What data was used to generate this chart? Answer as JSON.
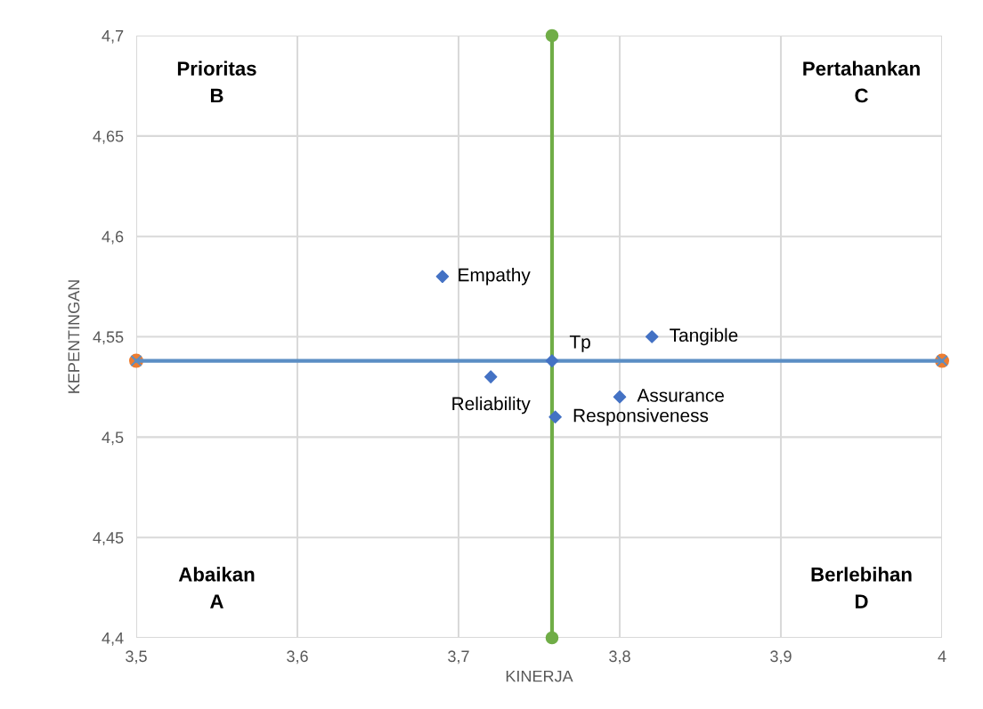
{
  "chart_data": {
    "type": "scatter",
    "xlabel": "KINERJA",
    "ylabel": "KEPENTINGAN",
    "xlim": [
      3.5,
      4
    ],
    "xticks": [
      {
        "value": 3.5,
        "label": "3,5"
      },
      {
        "value": 3.6,
        "label": "3,6"
      },
      {
        "value": 3.7,
        "label": "3,7"
      },
      {
        "value": 3.8,
        "label": "3,8"
      },
      {
        "value": 3.9,
        "label": "3,9"
      },
      {
        "value": 4,
        "label": "4"
      }
    ],
    "ylim": [
      4.4,
      4.7
    ],
    "yticks": [
      {
        "value": 4.4,
        "label": "4,4"
      },
      {
        "value": 4.45,
        "label": "4,45"
      },
      {
        "value": 4.5,
        "label": "4,5"
      },
      {
        "value": 4.55,
        "label": "4,55"
      },
      {
        "value": 4.6,
        "label": "4,6"
      },
      {
        "value": 4.65,
        "label": "4,65"
      },
      {
        "value": 4.7,
        "label": "4,7"
      }
    ],
    "grid": true,
    "legend": false,
    "series": [
      {
        "type": "line",
        "color": "#70ad47",
        "marker": "circle",
        "x": [
          3.758,
          3.758
        ],
        "values": [
          4.4,
          4.7
        ]
      },
      {
        "type": "scatter",
        "color": "#ed7d31",
        "marker": "circle",
        "x": [
          3.5,
          4
        ],
        "values": [
          4.538,
          4.538
        ]
      },
      {
        "type": "line",
        "color": "#5b8ec4",
        "marker": "cross",
        "x": [
          3.5,
          4
        ],
        "values": [
          4.538,
          4.538
        ]
      },
      {
        "color": "#4472c4",
        "marker": "diamond",
        "x": [
          3.69,
          3.82,
          3.758,
          3.72,
          3.8,
          3.76
        ],
        "values": [
          4.58,
          4.55,
          4.538,
          4.53,
          4.52,
          4.51
        ]
      }
    ],
    "annotations": [
      "Prioritas\nB",
      "Pertahankan\nC",
      "Abaikan\nA",
      "Berlebihan\nD",
      {
        "text": "Empathy",
        "x": 3.69,
        "y": 4.58
      },
      {
        "text": "Tangible",
        "x": 3.82,
        "y": 4.55
      },
      {
        "text": "Tp",
        "x": 3.758,
        "y": 4.538
      },
      {
        "text": "Reliability",
        "x": 3.72,
        "y": 4.53
      },
      {
        "text": "Assurance",
        "x": 3.8,
        "y": 4.52
      },
      {
        "text": "Responsiveness",
        "x": 3.76,
        "y": 4.51
      }
    ]
  }
}
